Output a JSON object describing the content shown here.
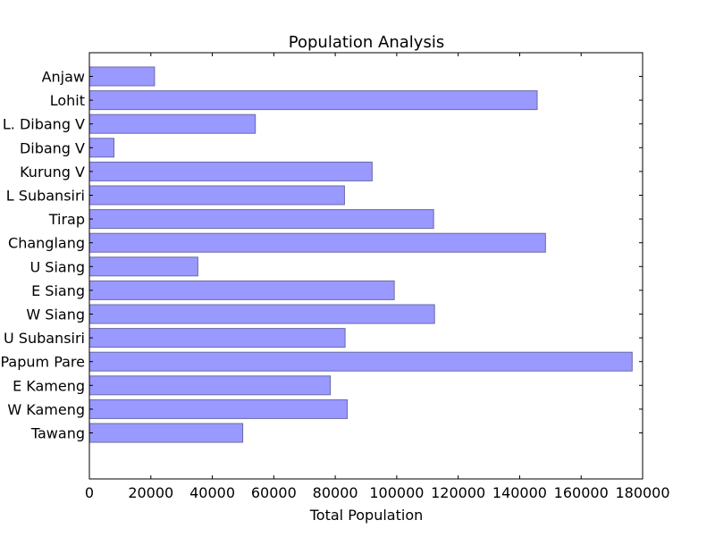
{
  "chart_data": {
    "type": "bar",
    "orientation": "horizontal",
    "title": "Population Analysis",
    "xlabel": "Total Population",
    "ylabel": "",
    "xlim": [
      0,
      180000
    ],
    "xticks": [
      0,
      20000,
      40000,
      60000,
      80000,
      100000,
      120000,
      140000,
      160000,
      180000
    ],
    "xtick_labels": [
      "0",
      "20000",
      "40000",
      "60000",
      "80000",
      "100000",
      "120000",
      "140000",
      "160000",
      "180000"
    ],
    "grid": false,
    "categories": [
      "Anjaw",
      "Lohit",
      "L. Dibang V",
      "Dibang V",
      "Kurung V",
      "L Subansiri",
      "Tirap",
      "Changlang",
      "U Siang",
      "E Siang",
      "W Siang",
      "U Subansiri",
      "Papum Pare",
      "E Kameng",
      "W Kameng",
      "Tawang"
    ],
    "values": [
      21200,
      145700,
      54000,
      8000,
      92000,
      83000,
      112000,
      148400,
      35300,
      99200,
      112300,
      83200,
      176600,
      78400,
      83900,
      49900
    ],
    "colors": {
      "bar_fill": "#9999ff",
      "bar_edge": "#6a6aa8",
      "axis": "#000000"
    }
  }
}
